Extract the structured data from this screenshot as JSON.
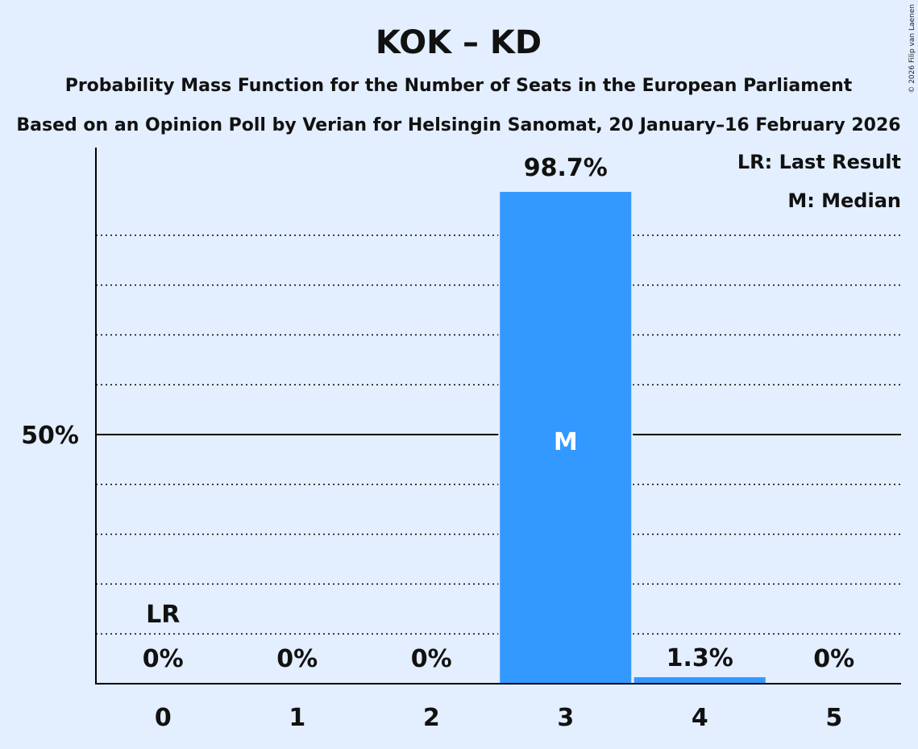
{
  "chart_data": {
    "type": "bar",
    "title": "KOK – KD",
    "subtitle1": "Probability Mass Function for the Number of Seats in the European Parliament",
    "subtitle2": "Based on an Opinion Poll by Verian for Helsingin Sanomat, 20 January–16 February 2026",
    "categories": [
      "0",
      "1",
      "2",
      "3",
      "4",
      "5"
    ],
    "values": [
      0,
      0,
      0,
      98.7,
      1.3,
      0
    ],
    "data_labels": [
      "0%",
      "0%",
      "0%",
      "98.7%",
      "1.3%",
      "0%"
    ],
    "ylim": [
      0,
      100
    ],
    "ytick_label": "50%",
    "last_result_category": "0",
    "last_result_marker": "LR",
    "median_category": "3",
    "median_marker": "M",
    "legend": [
      "LR: Last Result",
      "M: Median"
    ],
    "legend_position": "top-right",
    "bar_color": "#3399ff",
    "background_color": "#e3eeff",
    "copyright": "© 2026 Filip van Laenen"
  }
}
